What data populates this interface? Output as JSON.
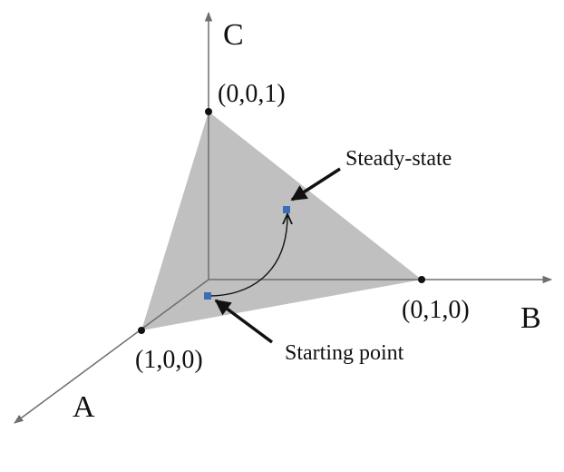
{
  "axes": {
    "a": "A",
    "b": "B",
    "c": "C"
  },
  "vertices": {
    "a": "(1,0,0)",
    "b": "(0,1,0)",
    "c": "(0,0,1)"
  },
  "annotations": {
    "steady_state": "Steady-state",
    "starting_point": "Starting point"
  },
  "colors": {
    "simplex_fill": "#c0c0c0",
    "axis": "#6e6e6e",
    "marker": "#3a6fb5",
    "ink": "#111111"
  }
}
